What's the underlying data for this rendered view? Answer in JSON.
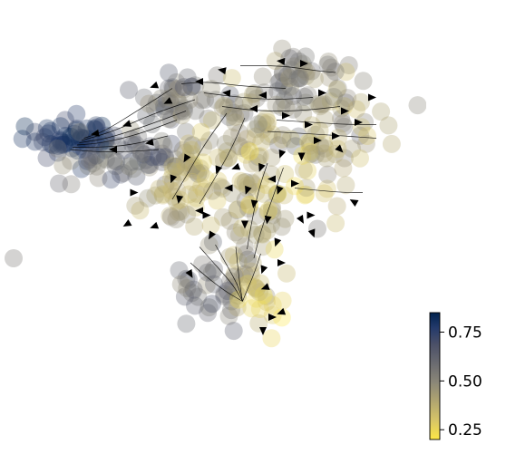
{
  "chart_data": {
    "type": "scatter",
    "title": "",
    "xlabel": "",
    "ylabel": "",
    "axes_visible": false,
    "grid": false,
    "overlay": "velocity-streamlines-with-arrowheads",
    "colormap": "cividis",
    "colorbar": {
      "position": "right-bottom",
      "range": [
        0.2,
        0.85
      ],
      "ticks": [
        0.25,
        0.5,
        0.75
      ],
      "tick_labels": [
        "0.25",
        "0.50",
        "0.75"
      ],
      "low_color": "#fde745",
      "mid_color": "#7c7b78",
      "high_color": "#00224e"
    },
    "clusters": [
      {
        "name": "",
        "center": [
          -3.6,
          1.35
        ],
        "spread": [
          0.45,
          0.25
        ],
        "count": 55,
        "value_range": [
          0.7,
          0.85
        ]
      },
      {
        "name": "",
        "center": [
          -2.3,
          1.05
        ],
        "spread": [
          0.75,
          0.35
        ],
        "count": 60,
        "value_range": [
          0.45,
          0.75
        ]
      },
      {
        "name": "",
        "center": [
          -1.25,
          2.35
        ],
        "spread": [
          0.6,
          0.3
        ],
        "count": 45,
        "value_range": [
          0.45,
          0.68
        ]
      },
      {
        "name": "",
        "center": [
          1.2,
          2.1
        ],
        "spread": [
          1.25,
          0.45
        ],
        "count": 85,
        "value_range": [
          0.3,
          0.62
        ]
      },
      {
        "name": "",
        "center": [
          1.5,
          2.9
        ],
        "spread": [
          0.45,
          0.25
        ],
        "count": 25,
        "value_range": [
          0.4,
          0.6
        ]
      },
      {
        "name": "",
        "center": [
          -0.7,
          0.9
        ],
        "spread": [
          0.55,
          0.4
        ],
        "count": 35,
        "value_range": [
          0.25,
          0.5
        ]
      },
      {
        "name": "",
        "center": [
          0.2,
          -0.1
        ],
        "spread": [
          0.4,
          0.8
        ],
        "count": 45,
        "value_range": [
          0.3,
          0.55
        ]
      },
      {
        "name": "",
        "center": [
          0.9,
          0.4
        ],
        "spread": [
          0.7,
          0.6
        ],
        "count": 35,
        "value_range": [
          0.2,
          0.45
        ]
      },
      {
        "name": "",
        "center": [
          -0.6,
          -1.8
        ],
        "spread": [
          0.45,
          0.45
        ],
        "count": 40,
        "value_range": [
          0.45,
          0.7
        ]
      },
      {
        "name": "",
        "center": [
          0.3,
          -2.1
        ],
        "spread": [
          0.35,
          0.4
        ],
        "count": 22,
        "value_range": [
          0.2,
          0.4
        ]
      },
      {
        "name": "",
        "center": [
          -1.4,
          0.0
        ],
        "spread": [
          0.45,
          0.4
        ],
        "count": 25,
        "value_range": [
          0.3,
          0.5
        ]
      },
      {
        "name": "",
        "center": [
          2.0,
          0.9
        ],
        "spread": [
          0.4,
          0.6
        ],
        "count": 18,
        "value_range": [
          0.3,
          0.5
        ]
      }
    ],
    "outliers": [
      {
        "x": -5.0,
        "y": -1.2,
        "value": 0.55
      },
      {
        "x": 2.8,
        "y": 1.5,
        "value": 0.3
      },
      {
        "x": -4.0,
        "y": 0.45,
        "value": 0.6
      },
      {
        "x": 1.7,
        "y": -0.55,
        "value": 0.55
      }
    ],
    "streamlines": [
      {
        "points": [
          [
            -1.2,
            2.05
          ],
          [
            -2.0,
            1.75
          ],
          [
            -2.9,
            1.45
          ],
          [
            -3.55,
            1.35
          ]
        ]
      },
      {
        "points": [
          [
            -1.0,
            2.3
          ],
          [
            -1.9,
            2.0
          ],
          [
            -2.8,
            1.6
          ],
          [
            -3.5,
            1.4
          ]
        ]
      },
      {
        "points": [
          [
            -1.4,
            1.85
          ],
          [
            -2.2,
            1.55
          ],
          [
            -3.0,
            1.35
          ],
          [
            -3.6,
            1.3
          ]
        ]
      },
      {
        "points": [
          [
            -1.6,
            1.5
          ],
          [
            -2.4,
            1.3
          ],
          [
            -3.1,
            1.25
          ],
          [
            -3.7,
            1.25
          ]
        ]
      },
      {
        "points": [
          [
            -1.8,
            1.2
          ],
          [
            -2.5,
            1.15
          ],
          [
            -3.2,
            1.15
          ],
          [
            -3.75,
            1.2
          ]
        ]
      },
      {
        "points": [
          [
            -1.5,
            2.55
          ],
          [
            -2.2,
            2.1
          ],
          [
            -3.0,
            1.6
          ],
          [
            -3.45,
            1.45
          ]
        ]
      },
      {
        "points": [
          [
            1.0,
            2.55
          ],
          [
            0.0,
            2.6
          ],
          [
            -0.7,
            2.7
          ],
          [
            -1.3,
            2.65
          ]
        ]
      },
      {
        "points": [
          [
            1.6,
            2.35
          ],
          [
            0.8,
            2.3
          ],
          [
            0.0,
            2.35
          ],
          [
            -0.8,
            2.45
          ]
        ]
      },
      {
        "points": [
          [
            2.2,
            2.15
          ],
          [
            1.3,
            2.05
          ],
          [
            0.4,
            2.05
          ],
          [
            -0.4,
            2.15
          ]
        ]
      },
      {
        "points": [
          [
            0.8,
            1.85
          ],
          [
            1.6,
            1.8
          ],
          [
            2.4,
            1.75
          ],
          [
            3.0,
            1.75
          ]
        ]
      },
      {
        "points": [
          [
            0.6,
            1.6
          ],
          [
            1.5,
            1.55
          ],
          [
            2.3,
            1.5
          ],
          [
            3.0,
            1.45
          ]
        ]
      },
      {
        "points": [
          [
            -0.3,
            2.0
          ],
          [
            -0.8,
            1.3
          ],
          [
            -1.2,
            0.6
          ],
          [
            -1.5,
            0.1
          ]
        ]
      },
      {
        "points": [
          [
            0.1,
            1.9
          ],
          [
            -0.2,
            1.2
          ],
          [
            -0.6,
            0.5
          ],
          [
            -0.9,
            0.0
          ]
        ]
      },
      {
        "points": [
          [
            0.6,
            0.9
          ],
          [
            0.4,
            0.3
          ],
          [
            0.25,
            -0.4
          ],
          [
            0.15,
            -1.0
          ]
        ]
      },
      {
        "points": [
          [
            0.95,
            0.8
          ],
          [
            0.7,
            0.1
          ],
          [
            0.45,
            -0.6
          ],
          [
            0.3,
            -1.2
          ]
        ]
      },
      {
        "points": [
          [
            -0.9,
            -0.95
          ],
          [
            -0.5,
            -1.4
          ],
          [
            -0.15,
            -1.8
          ],
          [
            0.05,
            -2.15
          ]
        ]
      },
      {
        "points": [
          [
            -0.55,
            -0.9
          ],
          [
            -0.3,
            -1.35
          ],
          [
            -0.05,
            -1.8
          ],
          [
            0.05,
            -2.15
          ]
        ]
      },
      {
        "points": [
          [
            -0.1,
            -0.95
          ],
          [
            -0.05,
            -1.45
          ],
          [
            0.0,
            -1.85
          ],
          [
            0.05,
            -2.15
          ]
        ]
      },
      {
        "points": [
          [
            0.45,
            -1.1
          ],
          [
            0.3,
            -1.55
          ],
          [
            0.15,
            -1.9
          ],
          [
            0.05,
            -2.15
          ]
        ]
      },
      {
        "points": [
          [
            -1.1,
            -1.3
          ],
          [
            -0.7,
            -1.65
          ],
          [
            -0.3,
            -1.95
          ],
          [
            0.05,
            -2.15
          ]
        ]
      },
      {
        "points": [
          [
            1.2,
            0.35
          ],
          [
            1.7,
            0.3
          ],
          [
            2.3,
            0.25
          ],
          [
            2.7,
            0.25
          ]
        ]
      },
      {
        "points": [
          [
            0.0,
            3.05
          ],
          [
            0.9,
            3.05
          ],
          [
            1.6,
            2.95
          ],
          [
            2.1,
            2.9
          ]
        ]
      }
    ],
    "arrows": [
      {
        "x": -3.2,
        "y": 1.55,
        "angle": 190
      },
      {
        "x": -2.5,
        "y": 1.75,
        "angle": 200
      },
      {
        "x": -2.8,
        "y": 1.2,
        "angle": 180
      },
      {
        "x": -2.0,
        "y": 1.35,
        "angle": 190
      },
      {
        "x": -1.6,
        "y": 2.25,
        "angle": 205
      },
      {
        "x": -1.9,
        "y": 2.6,
        "angle": 200
      },
      {
        "x": -0.9,
        "y": 2.7,
        "angle": 180
      },
      {
        "x": -0.4,
        "y": 2.95,
        "angle": 170
      },
      {
        "x": -0.3,
        "y": 2.45,
        "angle": 175
      },
      {
        "x": 0.5,
        "y": 2.4,
        "angle": 180
      },
      {
        "x": 0.3,
        "y": 2.1,
        "angle": 180
      },
      {
        "x": 0.9,
        "y": 3.15,
        "angle": 175
      },
      {
        "x": 1.4,
        "y": 3.1,
        "angle": 0
      },
      {
        "x": 1.8,
        "y": 2.45,
        "angle": 0
      },
      {
        "x": 2.3,
        "y": 2.05,
        "angle": 0
      },
      {
        "x": 2.6,
        "y": 1.8,
        "angle": 0
      },
      {
        "x": 2.9,
        "y": 2.35,
        "angle": 0
      },
      {
        "x": 1.5,
        "y": 1.75,
        "angle": 0
      },
      {
        "x": 1.0,
        "y": 1.95,
        "angle": 0
      },
      {
        "x": 2.1,
        "y": 1.5,
        "angle": 0
      },
      {
        "x": 1.7,
        "y": 1.4,
        "angle": 0
      },
      {
        "x": 2.2,
        "y": 1.2,
        "angle": 315
      },
      {
        "x": -1.2,
        "y": 1.0,
        "angle": 240
      },
      {
        "x": -1.5,
        "y": 0.55,
        "angle": 250
      },
      {
        "x": -1.35,
        "y": 0.1,
        "angle": 260
      },
      {
        "x": -0.5,
        "y": 0.75,
        "angle": 250
      },
      {
        "x": -0.25,
        "y": 0.35,
        "angle": 180
      },
      {
        "x": -0.1,
        "y": 0.8,
        "angle": 200
      },
      {
        "x": 0.15,
        "y": 0.3,
        "angle": 250
      },
      {
        "x": 0.45,
        "y": 0.8,
        "angle": 250
      },
      {
        "x": 0.3,
        "y": 0.0,
        "angle": 260
      },
      {
        "x": 0.1,
        "y": -0.45,
        "angle": 270
      },
      {
        "x": 0.6,
        "y": -0.35,
        "angle": 260
      },
      {
        "x": 0.85,
        "y": 0.3,
        "angle": 250
      },
      {
        "x": 0.8,
        "y": -0.85,
        "angle": 250
      },
      {
        "x": -0.65,
        "y": -0.7,
        "angle": 240
      },
      {
        "x": -1.1,
        "y": -1.55,
        "angle": 300
      },
      {
        "x": 0.5,
        "y": -1.45,
        "angle": 250
      },
      {
        "x": 0.55,
        "y": -1.85,
        "angle": 200
      },
      {
        "x": 0.9,
        "y": -1.3,
        "angle": 0
      },
      {
        "x": 1.35,
        "y": -0.35,
        "angle": 300
      },
      {
        "x": 1.6,
        "y": -0.65,
        "angle": 290
      },
      {
        "x": 1.55,
        "y": -0.25,
        "angle": 0
      },
      {
        "x": 0.9,
        "y": -2.4,
        "angle": 200
      },
      {
        "x": 0.7,
        "y": -2.5,
        "angle": 0
      },
      {
        "x": 0.5,
        "y": -2.8,
        "angle": 270
      },
      {
        "x": 1.2,
        "y": 0.45,
        "angle": 0
      },
      {
        "x": 0.7,
        "y": 0.55,
        "angle": 180
      },
      {
        "x": 2.5,
        "y": 0.05,
        "angle": 150
      },
      {
        "x": -2.5,
        "y": -0.45,
        "angle": 210
      },
      {
        "x": -2.35,
        "y": 0.25,
        "angle": 0
      },
      {
        "x": -1.9,
        "y": -0.5,
        "angle": 200
      },
      {
        "x": -0.9,
        "y": -0.15,
        "angle": 180
      },
      {
        "x": -0.75,
        "y": -0.25,
        "angle": 0
      },
      {
        "x": 0.9,
        "y": 1.1,
        "angle": 250
      },
      {
        "x": 1.35,
        "y": 1.05,
        "angle": 270
      }
    ]
  }
}
